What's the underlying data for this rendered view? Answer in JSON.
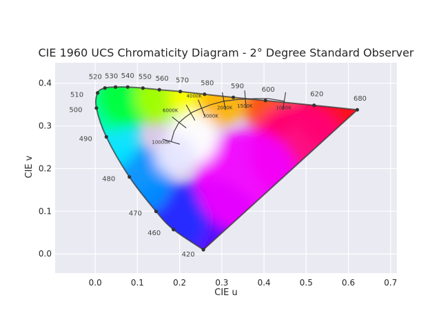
{
  "chart_data": {
    "type": "scatter",
    "title": "CIE 1960 UCS Chromaticity Diagram - 2° Degree Standard Observer",
    "xlabel": "CIE u",
    "ylabel": "CIE v",
    "xlim": [
      -0.095,
      0.715
    ],
    "ylim": [
      -0.045,
      0.448
    ],
    "x_ticks": [
      0.0,
      0.1,
      0.2,
      0.3,
      0.4,
      0.5,
      0.6,
      0.7
    ],
    "y_ticks": [
      0.0,
      0.1,
      0.2,
      0.3,
      0.4
    ],
    "grid": true,
    "colors": {
      "background": "#eaeaf2",
      "grid": "#ffffff",
      "locus": "#3a3a3a",
      "planckian": "#333333"
    },
    "spectral_locus": [
      {
        "wavelength": 420,
        "label": "420",
        "u": 0.2564,
        "v": 0.0098
      },
      {
        "wavelength": 460,
        "label": "460",
        "u": 0.1855,
        "v": 0.057
      },
      {
        "wavelength": 470,
        "label": "470",
        "u": 0.1442,
        "v": 0.0996
      },
      {
        "wavelength": 480,
        "label": "480",
        "u": 0.081,
        "v": 0.1804
      },
      {
        "wavelength": 490,
        "label": "490",
        "u": 0.0264,
        "v": 0.2742
      },
      {
        "wavelength": 500,
        "label": "500",
        "u": 0.0029,
        "v": 0.3418
      },
      {
        "wavelength": 510,
        "label": "510",
        "u": 0.0056,
        "v": 0.3773
      },
      {
        "wavelength": 520,
        "label": "520",
        "u": 0.0231,
        "v": 0.3888
      },
      {
        "wavelength": 530,
        "label": "530",
        "u": 0.0482,
        "v": 0.391
      },
      {
        "wavelength": 540,
        "label": "540",
        "u": 0.077,
        "v": 0.3911
      },
      {
        "wavelength": 550,
        "label": "550",
        "u": 0.1131,
        "v": 0.3886
      },
      {
        "wavelength": 560,
        "label": "560",
        "u": 0.152,
        "v": 0.3848
      },
      {
        "wavelength": 570,
        "label": "570",
        "u": 0.2016,
        "v": 0.3806
      },
      {
        "wavelength": 580,
        "label": "580",
        "u": 0.2591,
        "v": 0.3742
      },
      {
        "wavelength": 590,
        "label": "590",
        "u": 0.3273,
        "v": 0.3669
      },
      {
        "wavelength": 600,
        "label": "600",
        "u": 0.4035,
        "v": 0.3594
      },
      {
        "wavelength": 620,
        "label": "620",
        "u": 0.5187,
        "v": 0.3482
      },
      {
        "wavelength": 680,
        "label": "680",
        "u": 0.6211,
        "v": 0.3378
      }
    ],
    "planckian_locus": [
      {
        "u": 0.18,
        "v": 0.263
      },
      {
        "u": 0.187,
        "v": 0.287
      },
      {
        "u": 0.198,
        "v": 0.307
      },
      {
        "u": 0.213,
        "v": 0.32
      },
      {
        "u": 0.23,
        "v": 0.332
      },
      {
        "u": 0.251,
        "v": 0.341
      },
      {
        "u": 0.275,
        "v": 0.35
      },
      {
        "u": 0.305,
        "v": 0.358
      },
      {
        "u": 0.34,
        "v": 0.362
      },
      {
        "u": 0.38,
        "v": 0.364
      },
      {
        "u": 0.41,
        "v": 0.364
      },
      {
        "u": 0.448,
        "v": 0.358
      }
    ],
    "cct_isotherms": [
      {
        "label": "10000K",
        "u": 0.18,
        "v": 0.263
      },
      {
        "label": "6000K",
        "u": 0.199,
        "v": 0.308
      },
      {
        "label": "4000K",
        "u": 0.226,
        "v": 0.331
      },
      {
        "label": "3000K",
        "u": 0.252,
        "v": 0.342
      },
      {
        "label": "2000K",
        "u": 0.305,
        "v": 0.358
      },
      {
        "label": "1500K",
        "u": 0.356,
        "v": 0.362
      },
      {
        "label": "1000K",
        "u": 0.448,
        "v": 0.358
      }
    ]
  }
}
